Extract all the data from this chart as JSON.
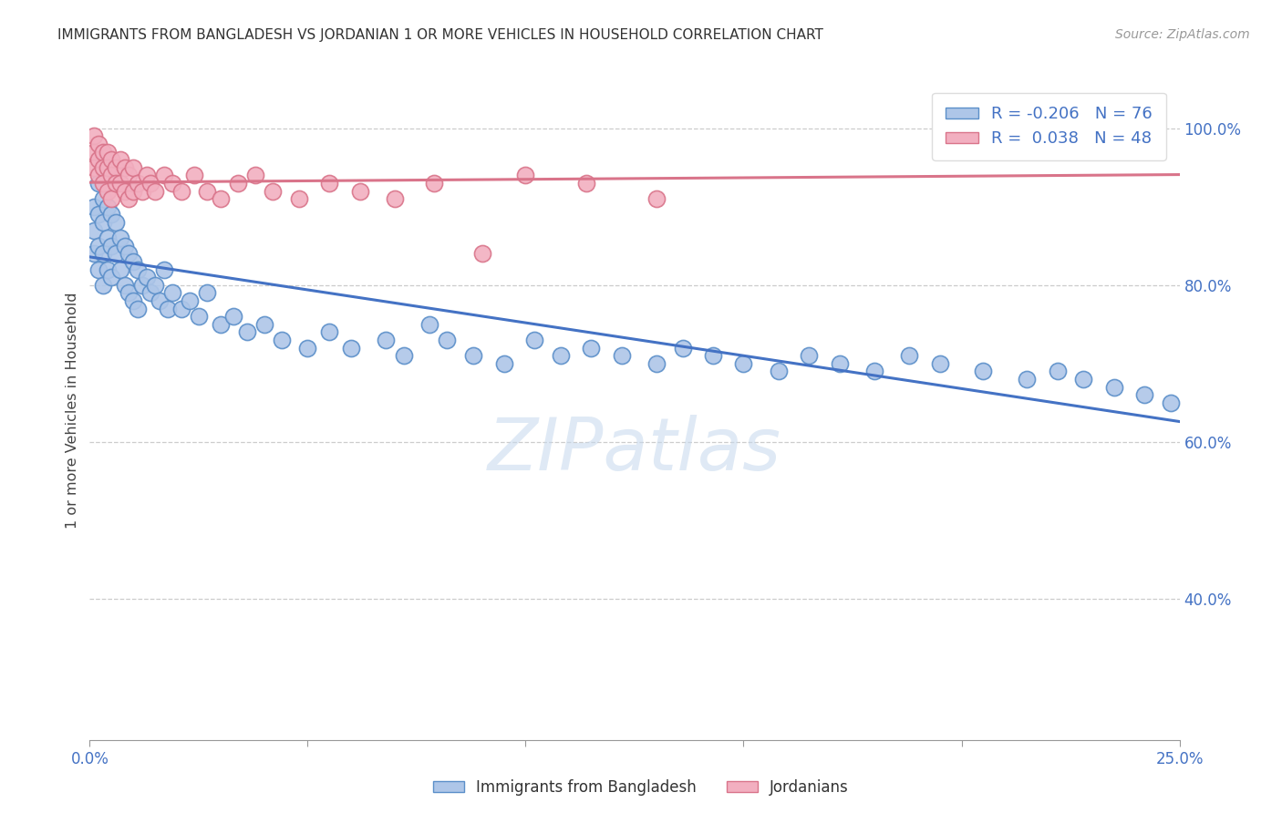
{
  "title": "IMMIGRANTS FROM BANGLADESH VS JORDANIAN 1 OR MORE VEHICLES IN HOUSEHOLD CORRELATION CHART",
  "source": "Source: ZipAtlas.com",
  "ylabel": "1 or more Vehicles in Household",
  "legend_r_blue": "-0.206",
  "legend_n_blue": "76",
  "legend_r_pink": "0.038",
  "legend_n_pink": "48",
  "blue_color": "#aec6e8",
  "pink_color": "#f2afc0",
  "blue_edge_color": "#5b8fc9",
  "pink_edge_color": "#d9748a",
  "blue_line_color": "#4472c4",
  "pink_line_color": "#d9748a",
  "watermark_text": "ZIPatlas",
  "xlim": [
    0.0,
    0.25
  ],
  "ylim": [
    0.22,
    1.06
  ],
  "blue_line_x0": 0.0,
  "blue_line_y0": 0.836,
  "blue_line_x1": 0.25,
  "blue_line_y1": 0.626,
  "pink_line_x0": 0.0,
  "pink_line_y0": 0.931,
  "pink_line_x1": 0.25,
  "pink_line_y1": 0.941,
  "blue_x": [
    0.001,
    0.001,
    0.001,
    0.002,
    0.002,
    0.002,
    0.002,
    0.003,
    0.003,
    0.003,
    0.003,
    0.004,
    0.004,
    0.004,
    0.005,
    0.005,
    0.005,
    0.006,
    0.006,
    0.007,
    0.007,
    0.008,
    0.008,
    0.009,
    0.009,
    0.01,
    0.01,
    0.011,
    0.011,
    0.012,
    0.013,
    0.014,
    0.015,
    0.016,
    0.017,
    0.018,
    0.019,
    0.021,
    0.023,
    0.025,
    0.027,
    0.03,
    0.033,
    0.036,
    0.04,
    0.044,
    0.05,
    0.055,
    0.06,
    0.068,
    0.072,
    0.078,
    0.082,
    0.088,
    0.095,
    0.102,
    0.108,
    0.115,
    0.122,
    0.13,
    0.136,
    0.143,
    0.15,
    0.158,
    0.165,
    0.172,
    0.18,
    0.188,
    0.195,
    0.205,
    0.215,
    0.222,
    0.228,
    0.235,
    0.242,
    0.248
  ],
  "blue_y": [
    0.9,
    0.87,
    0.84,
    0.93,
    0.89,
    0.85,
    0.82,
    0.91,
    0.88,
    0.84,
    0.8,
    0.9,
    0.86,
    0.82,
    0.89,
    0.85,
    0.81,
    0.88,
    0.84,
    0.86,
    0.82,
    0.85,
    0.8,
    0.84,
    0.79,
    0.83,
    0.78,
    0.82,
    0.77,
    0.8,
    0.81,
    0.79,
    0.8,
    0.78,
    0.82,
    0.77,
    0.79,
    0.77,
    0.78,
    0.76,
    0.79,
    0.75,
    0.76,
    0.74,
    0.75,
    0.73,
    0.72,
    0.74,
    0.72,
    0.73,
    0.71,
    0.75,
    0.73,
    0.71,
    0.7,
    0.73,
    0.71,
    0.72,
    0.71,
    0.7,
    0.72,
    0.71,
    0.7,
    0.69,
    0.71,
    0.7,
    0.69,
    0.71,
    0.7,
    0.69,
    0.68,
    0.69,
    0.68,
    0.67,
    0.66,
    0.65
  ],
  "pink_x": [
    0.001,
    0.001,
    0.001,
    0.002,
    0.002,
    0.002,
    0.003,
    0.003,
    0.003,
    0.004,
    0.004,
    0.004,
    0.005,
    0.005,
    0.005,
    0.006,
    0.006,
    0.007,
    0.007,
    0.008,
    0.008,
    0.009,
    0.009,
    0.01,
    0.01,
    0.011,
    0.012,
    0.013,
    0.014,
    0.015,
    0.017,
    0.019,
    0.021,
    0.024,
    0.027,
    0.03,
    0.034,
    0.038,
    0.042,
    0.048,
    0.055,
    0.062,
    0.07,
    0.079,
    0.09,
    0.1,
    0.114,
    0.13
  ],
  "pink_y": [
    0.99,
    0.97,
    0.95,
    0.98,
    0.96,
    0.94,
    0.97,
    0.95,
    0.93,
    0.97,
    0.95,
    0.92,
    0.96,
    0.94,
    0.91,
    0.95,
    0.93,
    0.96,
    0.93,
    0.95,
    0.92,
    0.94,
    0.91,
    0.95,
    0.92,
    0.93,
    0.92,
    0.94,
    0.93,
    0.92,
    0.94,
    0.93,
    0.92,
    0.94,
    0.92,
    0.91,
    0.93,
    0.94,
    0.92,
    0.91,
    0.93,
    0.92,
    0.91,
    0.93,
    0.84,
    0.94,
    0.93,
    0.91
  ]
}
